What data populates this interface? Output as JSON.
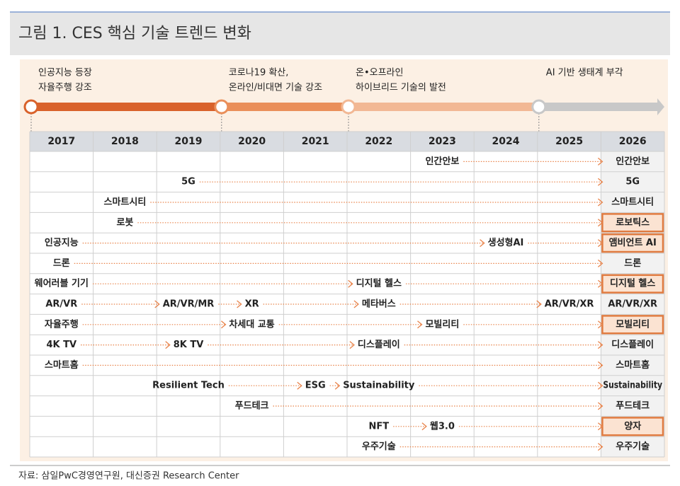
{
  "header": {
    "title": "그림 1. CES 핵심 기술 트렌드 변화"
  },
  "timeline": {
    "phases": [
      {
        "lines": [
          "인공지능 등장",
          "자율주행 강조"
        ],
        "year": "2017",
        "color": "#d9622b"
      },
      {
        "lines": [
          "코로나19 확산,",
          "온라인/비대면 기술 강조"
        ],
        "year": "2020",
        "color": "#ea8f5a"
      },
      {
        "lines": [
          "온•오프라인",
          "하이브리드 기술의 발전"
        ],
        "year": "2022",
        "color": "#f2b894"
      },
      {
        "lines": [
          "AI 기반 생태계 부각"
        ],
        "year": "2025",
        "color": "#c8c8c8"
      }
    ]
  },
  "table": {
    "years": [
      "2017",
      "2018",
      "2019",
      "2020",
      "2021",
      "2022",
      "2023",
      "2024",
      "2025",
      "2026"
    ],
    "rows": [
      {
        "steps": [
          {
            "label": "인간안보",
            "year": "2023"
          }
        ],
        "result": "인간안보",
        "highlight": false
      },
      {
        "steps": [
          {
            "label": "5G",
            "year": "2019"
          }
        ],
        "result": "5G",
        "highlight": false
      },
      {
        "steps": [
          {
            "label": "스마트시티",
            "year": "2018"
          }
        ],
        "result": "스마트시티",
        "highlight": false
      },
      {
        "steps": [
          {
            "label": "로봇",
            "year": "2018"
          }
        ],
        "result": "로보틱스",
        "highlight": true
      },
      {
        "steps": [
          {
            "label": "인공지능",
            "year": "2017"
          },
          {
            "label": "생성형AI",
            "year": "2024"
          }
        ],
        "result": "앰비언트 AI",
        "highlight": true
      },
      {
        "steps": [
          {
            "label": "드론",
            "year": "2017"
          }
        ],
        "result": "드론",
        "highlight": false
      },
      {
        "steps": [
          {
            "label": "웨어러블 기기",
            "year": "2017"
          },
          {
            "label": "디지털 헬스",
            "year": "2022"
          }
        ],
        "result": "디지털 헬스",
        "highlight": true
      },
      {
        "steps": [
          {
            "label": "AR/VR",
            "year": "2017"
          },
          {
            "label": "AR/VR/MR",
            "year": "2019"
          },
          {
            "label": "XR",
            "year": "2020"
          },
          {
            "label": "메타버스",
            "year": "2022"
          },
          {
            "label": "AR/VR/XR",
            "year": "2025"
          }
        ],
        "result": "AR/VR/XR",
        "highlight": false
      },
      {
        "steps": [
          {
            "label": "자율주행",
            "year": "2017"
          },
          {
            "label": "차세대 교통",
            "year": "2020"
          },
          {
            "label": "모빌리티",
            "year": "2023"
          }
        ],
        "result": "모빌리티",
        "highlight": true
      },
      {
        "steps": [
          {
            "label": "4K TV",
            "year": "2017"
          },
          {
            "label": "8K TV",
            "year": "2019"
          },
          {
            "label": "디스플레이",
            "year": "2022"
          }
        ],
        "result": "디스플레이",
        "highlight": false
      },
      {
        "steps": [
          {
            "label": "스마트홈",
            "year": "2017"
          }
        ],
        "result": "스마트홈",
        "highlight": false
      },
      {
        "steps": [
          {
            "label": "Resilient Tech",
            "year": "2019"
          },
          {
            "label": "ESG",
            "year": "2021"
          },
          {
            "label": "Sustainability",
            "year": "2022"
          }
        ],
        "result": "Sustainability",
        "highlight": false
      },
      {
        "steps": [
          {
            "label": "푸드테크",
            "year": "2020"
          }
        ],
        "result": "푸드테크",
        "highlight": false
      },
      {
        "steps": [
          {
            "label": "NFT",
            "year": "2022"
          },
          {
            "label": "웹3.0",
            "year": "2023"
          }
        ],
        "result": "양자",
        "highlight": true
      },
      {
        "steps": [
          {
            "label": "우주기술",
            "year": "2022"
          }
        ],
        "result": "우주기술",
        "highlight": false
      }
    ]
  },
  "footer": {
    "source": "자료: 삼일PwC경영연구원, 대신증권 Research Center"
  }
}
